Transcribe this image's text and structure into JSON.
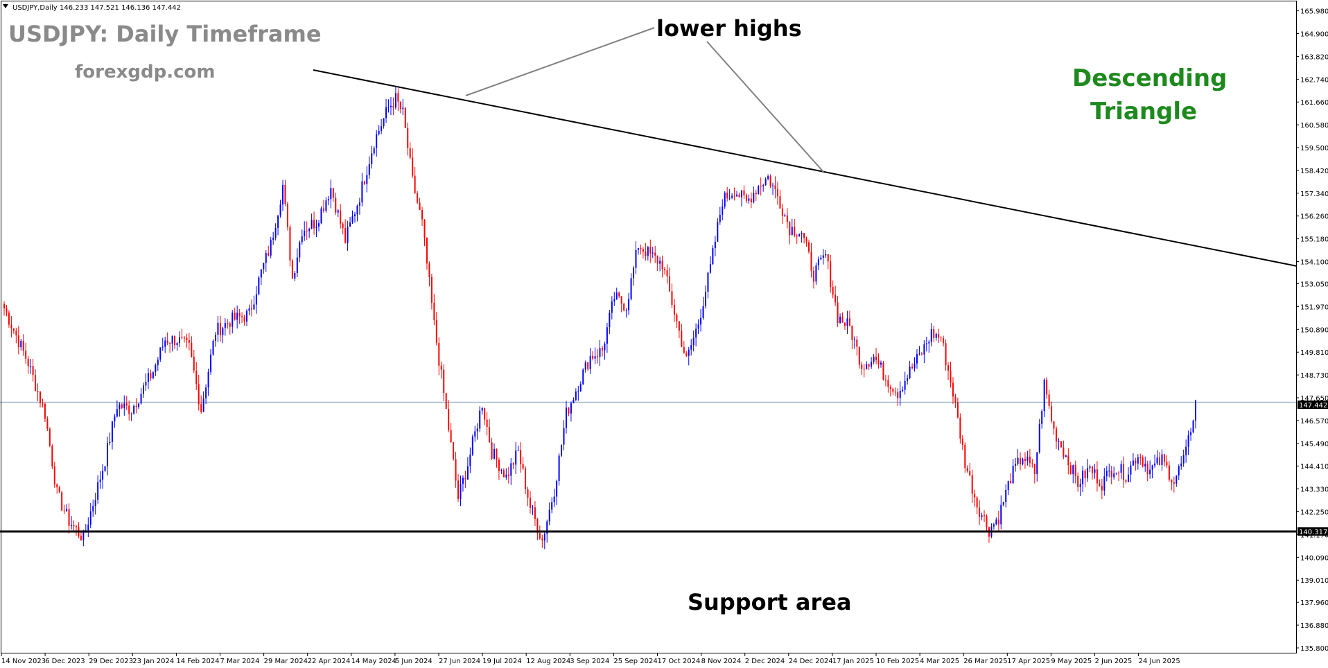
{
  "header": {
    "symbol": "USDJPY,Daily",
    "ohlc": "146.233 147.521 146.136 147.442"
  },
  "title": "USDJPY: Daily Timeframe",
  "website": "forexgdp.com",
  "annotations": {
    "lower_highs": "lower highs",
    "support_area": "Support area",
    "pattern_line1": "Descending",
    "pattern_line2": "Triangle"
  },
  "current_price": "147.442",
  "support_price": "140.317",
  "colors": {
    "bull": "#0000ff",
    "bear": "#ff0000",
    "background": "#ffffff",
    "pattern_text": "#1e8a1e",
    "title_text": "#8a8a8a",
    "price_line": "#7f9fbf"
  },
  "chart_data": {
    "type": "candlestick",
    "title": "USDJPY: Daily Timeframe",
    "ylim": [
      135.8,
      166.0
    ],
    "y_ticks": [
      "165.980",
      "164.900",
      "163.820",
      "162.740",
      "161.660",
      "160.580",
      "159.500",
      "158.420",
      "157.340",
      "156.260",
      "155.180",
      "154.100",
      "153.050",
      "151.970",
      "150.890",
      "149.810",
      "148.730",
      "147.650",
      "146.570",
      "145.490",
      "144.410",
      "143.330",
      "142.250",
      "141.170",
      "140.090",
      "139.010",
      "137.960",
      "136.880",
      "135.800"
    ],
    "x_ticks": [
      "14 Nov 2023",
      "6 Dec 2023",
      "29 Dec 2023",
      "23 Jan 2024",
      "14 Feb 2024",
      "7 Mar 2024",
      "29 Mar 2024",
      "22 Apr 2024",
      "14 May 2024",
      "5 Jun 2024",
      "27 Jun 2024",
      "19 Jul 2024",
      "12 Aug 2024",
      "3 Sep 2024",
      "25 Sep 2024",
      "17 Oct 2024",
      "8 Nov 2024",
      "2 Dec 2024",
      "24 Dec 2024",
      "17 Jan 2025",
      "10 Feb 2025",
      "4 Mar 2025",
      "26 Mar 2025",
      "17 Apr 2025",
      "9 May 2025",
      "2 Jun 2025",
      "24 Jun 2025"
    ],
    "anchors": [
      [
        0,
        151.9
      ],
      [
        10,
        149.3
      ],
      [
        17,
        146.9
      ],
      [
        22,
        143.1
      ],
      [
        27,
        141.8
      ],
      [
        33,
        141.0
      ],
      [
        42,
        144.7
      ],
      [
        47,
        147.3
      ],
      [
        53,
        147.1
      ],
      [
        62,
        148.9
      ],
      [
        67,
        150.4
      ],
      [
        72,
        150.4
      ],
      [
        77,
        150.0
      ],
      [
        82,
        147.1
      ],
      [
        88,
        150.8
      ],
      [
        94,
        151.3
      ],
      [
        102,
        151.6
      ],
      [
        107,
        153.6
      ],
      [
        111,
        154.9
      ],
      [
        116,
        157.7
      ],
      [
        120,
        153.3
      ],
      [
        124,
        155.6
      ],
      [
        130,
        156.0
      ],
      [
        136,
        157.6
      ],
      [
        142,
        155.1
      ],
      [
        148,
        157.2
      ],
      [
        154,
        159.8
      ],
      [
        160,
        161.4
      ],
      [
        163,
        161.8
      ],
      [
        166,
        161.1
      ],
      [
        170,
        157.9
      ],
      [
        174,
        155.9
      ],
      [
        179,
        151.1
      ],
      [
        185,
        146.2
      ],
      [
        189,
        142.9
      ],
      [
        193,
        144.5
      ],
      [
        199,
        147.4
      ],
      [
        203,
        145.1
      ],
      [
        209,
        143.9
      ],
      [
        214,
        145.1
      ],
      [
        219,
        142.5
      ],
      [
        224,
        140.9
      ],
      [
        229,
        143.3
      ],
      [
        234,
        146.9
      ],
      [
        239,
        148.3
      ],
      [
        244,
        149.6
      ],
      [
        249,
        149.9
      ],
      [
        254,
        152.4
      ],
      [
        259,
        152.0
      ],
      [
        264,
        154.9
      ],
      [
        269,
        154.4
      ],
      [
        274,
        154.0
      ],
      [
        279,
        151.7
      ],
      [
        284,
        149.4
      ],
      [
        289,
        151.2
      ],
      [
        294,
        153.8
      ],
      [
        299,
        157.0
      ],
      [
        304,
        157.5
      ],
      [
        309,
        156.9
      ],
      [
        314,
        157.7
      ],
      [
        318,
        158.1
      ],
      [
        322,
        157.2
      ],
      [
        327,
        155.7
      ],
      [
        332,
        155.5
      ],
      [
        337,
        153.5
      ],
      [
        342,
        154.4
      ],
      [
        347,
        151.5
      ],
      [
        352,
        151.0
      ],
      [
        357,
        149.2
      ],
      [
        362,
        149.6
      ],
      [
        367,
        148.6
      ],
      [
        372,
        147.9
      ],
      [
        377,
        148.9
      ],
      [
        382,
        149.8
      ],
      [
        386,
        150.7
      ],
      [
        390,
        150.5
      ],
      [
        395,
        147.9
      ],
      [
        400,
        144.6
      ],
      [
        405,
        142.6
      ],
      [
        410,
        141.4
      ],
      [
        414,
        142.0
      ],
      [
        419,
        143.9
      ],
      [
        424,
        144.9
      ],
      [
        429,
        144.1
      ],
      [
        433,
        148.3
      ],
      [
        437,
        146.1
      ],
      [
        442,
        144.9
      ],
      [
        447,
        143.6
      ],
      [
        452,
        144.3
      ],
      [
        457,
        143.6
      ],
      [
        462,
        144.4
      ],
      [
        467,
        144.0
      ],
      [
        472,
        145.0
      ],
      [
        477,
        144.2
      ],
      [
        482,
        144.7
      ],
      [
        487,
        143.7
      ],
      [
        492,
        145.0
      ],
      [
        496,
        147.4
      ]
    ],
    "total_bars": 497
  }
}
